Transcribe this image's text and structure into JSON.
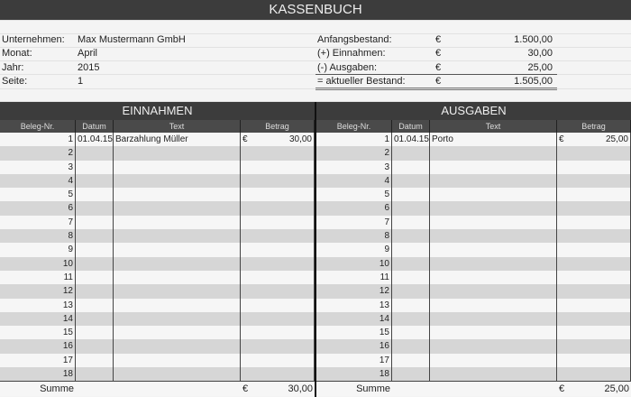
{
  "title": "KASSENBUCH",
  "info": {
    "left": [
      {
        "label": "Unternehmen:",
        "value": "Max Mustermann GmbH"
      },
      {
        "label": "Monat:",
        "value": "April"
      },
      {
        "label": "Jahr:",
        "value": "2015"
      },
      {
        "label": "Seite:",
        "value": "1"
      }
    ],
    "right": [
      {
        "label": "Anfangsbestand:",
        "currency": "€",
        "value": "1.500,00"
      },
      {
        "label": "(+) Einnahmen:",
        "currency": "€",
        "value": "30,00"
      },
      {
        "label": "(-) Ausgaben:",
        "currency": "€",
        "value": "25,00"
      },
      {
        "label": "= aktueller Bestand:",
        "currency": "€",
        "value": "1.505,00"
      }
    ]
  },
  "columns": [
    "Beleg-Nr.",
    "Datum",
    "Text",
    "Betrag"
  ],
  "einnahmen": {
    "title": "EINNAHMEN",
    "rows": [
      {
        "nr": "1",
        "datum": "01.04.15",
        "text": "Barzahlung Müller",
        "currency": "€",
        "betrag": "30,00"
      }
    ],
    "summe_label": "Summe",
    "summe_currency": "€",
    "summe": "30,00"
  },
  "ausgaben": {
    "title": "AUSGABEN",
    "rows": [
      {
        "nr": "1",
        "datum": "01.04.15",
        "text": "Porto",
        "currency": "€",
        "betrag": "25,00"
      }
    ],
    "summe_label": "Summe",
    "summe_currency": "€",
    "summe": "25,00"
  },
  "row_count": 18
}
